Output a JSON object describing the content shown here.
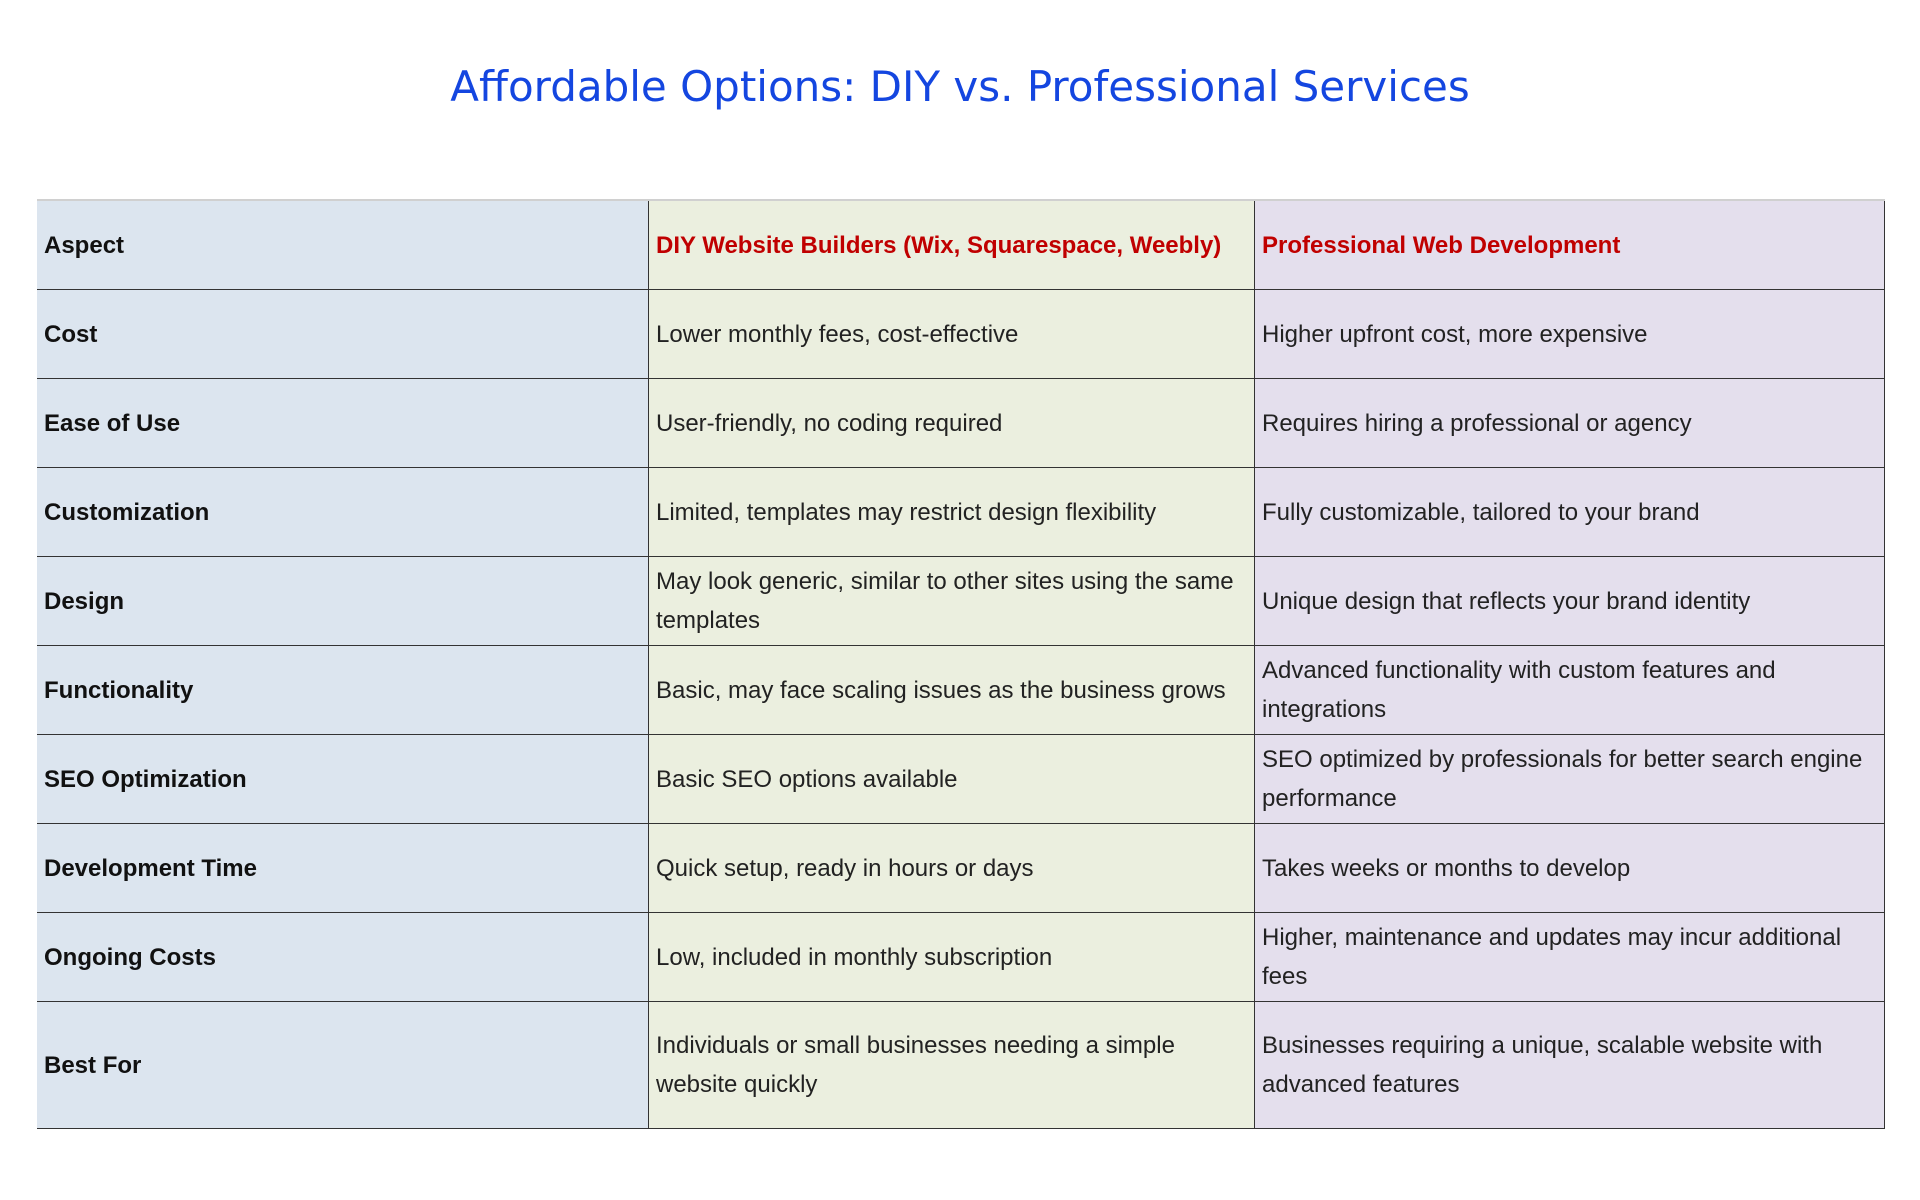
{
  "title": "Affordable Options: DIY vs. Professional Services",
  "table": {
    "headers": [
      "Aspect",
      "DIY Website Builders (Wix, Squarespace, Weebly)",
      "Professional Web Development"
    ],
    "rows": [
      [
        "Cost",
        "Lower monthly fees, cost-effective",
        "Higher upfront cost, more expensive"
      ],
      [
        "Ease of Use",
        "User-friendly, no coding required",
        "Requires hiring a professional or agency"
      ],
      [
        "Customization",
        "Limited, templates may restrict design flexibility",
        "Fully customizable, tailored to your brand"
      ],
      [
        "Design",
        "May look generic, similar to other sites using the same templates",
        "Unique design that reflects your brand identity"
      ],
      [
        "Functionality",
        "Basic, may face scaling issues as the business grows",
        "Advanced functionality with custom features and integrations"
      ],
      [
        "SEO Optimization",
        "Basic SEO options available",
        "SEO optimized by professionals for better search engine performance"
      ],
      [
        "Development Time",
        "Quick setup, ready in hours or days",
        "Takes weeks or months to develop"
      ],
      [
        "Ongoing Costs",
        "Low, included in monthly subscription",
        "Higher, maintenance and updates may incur additional fees"
      ],
      [
        "Best For",
        "Individuals or small businesses needing a simple website quickly",
        "Businesses requiring a unique, scalable website with advanced features"
      ]
    ]
  },
  "colors": {
    "title": "#1446e0",
    "header_text": "#c00000",
    "col_aspect": "#dce5ef",
    "col_diy": "#ebefdf",
    "col_pro": "#e4dfed"
  }
}
